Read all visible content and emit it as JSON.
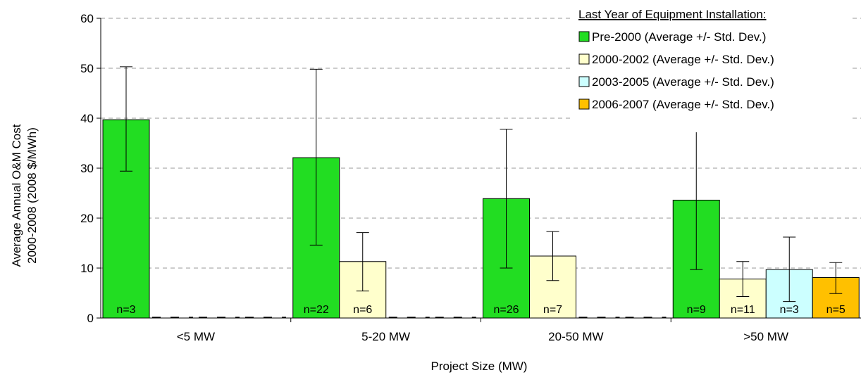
{
  "chart_data": {
    "type": "bar",
    "xlabel": "Project Size (MW)",
    "ylabel_lines": [
      "Average Annual O&M Cost",
      "2000-2008 (2008 $/MWh)"
    ],
    "ylim": [
      0,
      60
    ],
    "yticks": [
      0,
      10,
      20,
      30,
      40,
      50,
      60
    ],
    "grid": true,
    "legend_title": "Last Year of Equipment Installation:",
    "legend_position": "top-right",
    "categories": [
      "<5 MW",
      "5-20 MW",
      "20-50 MW",
      ">50 MW"
    ],
    "series": [
      {
        "name": "Pre-2000 (Average +/- Std. Dev.)",
        "color": "#22dd22",
        "values": [
          39.7,
          32.1,
          23.9,
          23.6
        ],
        "err_low": [
          29.4,
          14.6,
          10.0,
          9.7
        ],
        "err_high": [
          50.3,
          49.8,
          37.8,
          37.8
        ],
        "n_labels": [
          "n=3",
          "n=22",
          "n=26",
          "n=9"
        ]
      },
      {
        "name": "2000-2002 (Average +/- Std. Dev.)",
        "color": "#ffffcc",
        "values": [
          0,
          11.3,
          12.4,
          7.8
        ],
        "err_low": [
          null,
          5.4,
          7.5,
          4.3
        ],
        "err_high": [
          null,
          17.1,
          17.3,
          11.3
        ],
        "n_labels": [
          "",
          "n=6",
          "n=7",
          "n=11"
        ]
      },
      {
        "name": "2003-2005 (Average +/- Std. Dev.)",
        "color": "#ccffff",
        "values": [
          0,
          0,
          0,
          9.7
        ],
        "err_low": [
          null,
          null,
          null,
          3.3
        ],
        "err_high": [
          null,
          null,
          null,
          16.2
        ],
        "n_labels": [
          "",
          "",
          "",
          "n=3"
        ]
      },
      {
        "name": "2006-2007 (Average +/- Std. Dev.)",
        "color": "#ffc000",
        "values": [
          0,
          0,
          0,
          8.1
        ],
        "err_low": [
          null,
          null,
          null,
          4.9
        ],
        "err_high": [
          null,
          null,
          null,
          11.1
        ],
        "n_labels": [
          "",
          "",
          "",
          "n=5"
        ]
      }
    ]
  }
}
